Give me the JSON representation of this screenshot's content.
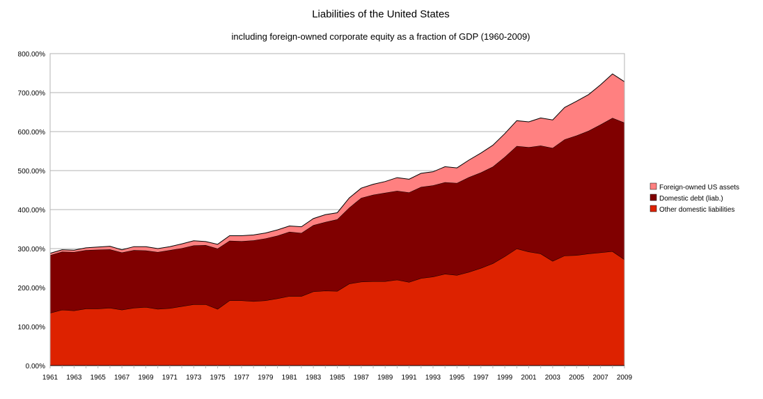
{
  "chart_data": {
    "type": "area",
    "stacked": true,
    "title": "Liabilities of the United States",
    "subtitle": "including foreign-owned corporate equity as a fraction of GDP (1960-2009)",
    "xlabel": "",
    "ylabel": "",
    "ylim": [
      0,
      800
    ],
    "yticks": [
      "0.00%",
      "100.00%",
      "200.00%",
      "300.00%",
      "400.00%",
      "500.00%",
      "600.00%",
      "700.00%",
      "800.00%"
    ],
    "ytick_values": [
      0,
      100,
      200,
      300,
      400,
      500,
      600,
      700,
      800
    ],
    "xtick_labels": [
      "1961",
      "1963",
      "1965",
      "1967",
      "1969",
      "1971",
      "1973",
      "1975",
      "1977",
      "1979",
      "1981",
      "1983",
      "1985",
      "1987",
      "1989",
      "1991",
      "1993",
      "1995",
      "1997",
      "1999",
      "2001",
      "2003",
      "2005",
      "2007",
      "2009"
    ],
    "grid": true,
    "legend_position": "right",
    "x": [
      1961,
      1962,
      1963,
      1964,
      1965,
      1966,
      1967,
      1968,
      1969,
      1970,
      1971,
      1972,
      1973,
      1974,
      1975,
      1976,
      1977,
      1978,
      1979,
      1980,
      1981,
      1982,
      1983,
      1984,
      1985,
      1986,
      1987,
      1988,
      1989,
      1990,
      1991,
      1992,
      1993,
      1994,
      1995,
      1996,
      1997,
      1998,
      1999,
      2000,
      2001,
      2002,
      2003,
      2004,
      2005,
      2006,
      2007,
      2008,
      2009
    ],
    "series": [
      {
        "name": "Other domestic liabilities",
        "color": "#dd2200",
        "values": [
          135,
          143,
          141,
          146,
          146,
          148,
          143,
          148,
          150,
          145,
          147,
          152,
          157,
          157,
          145,
          167,
          167,
          165,
          167,
          172,
          178,
          178,
          190,
          192,
          191,
          210,
          215,
          216,
          216,
          220,
          214,
          224,
          228,
          235,
          232,
          240,
          250,
          262,
          280,
          300,
          292,
          287,
          268,
          282,
          283,
          287,
          290,
          293,
          272
        ]
      },
      {
        "name": "Domestic debt (liab.)",
        "color": "#800000",
        "values": [
          148,
          149,
          150,
          150,
          151,
          150,
          147,
          148,
          145,
          146,
          149,
          149,
          151,
          152,
          155,
          153,
          152,
          156,
          159,
          161,
          165,
          162,
          170,
          176,
          184,
          195,
          215,
          222,
          227,
          228,
          230,
          234,
          234,
          235,
          236,
          243,
          245,
          248,
          255,
          263,
          268,
          277,
          290,
          298,
          307,
          315,
          328,
          342,
          351
        ]
      },
      {
        "name": "Foreign-owned US assets",
        "color": "#ff8080",
        "values": [
          5,
          5,
          5,
          6,
          7,
          8,
          7,
          9,
          10,
          9,
          9,
          11,
          12,
          9,
          11,
          13,
          14,
          14,
          14,
          15,
          15,
          16,
          17,
          19,
          17,
          25,
          25,
          27,
          29,
          34,
          34,
          35,
          35,
          40,
          39,
          44,
          50,
          55,
          60,
          65,
          65,
          71,
          72,
          82,
          88,
          93,
          102,
          113,
          105
        ]
      }
    ]
  }
}
